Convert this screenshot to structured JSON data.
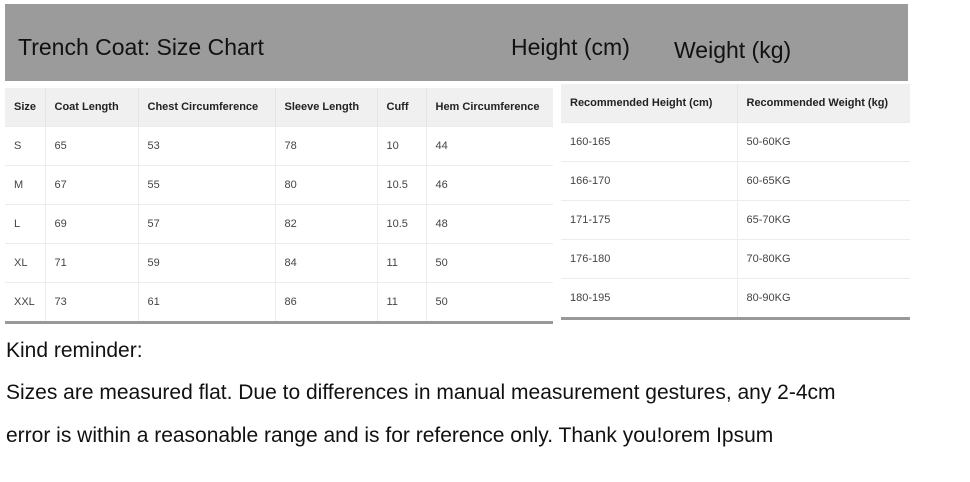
{
  "banner": {
    "title": "Trench Coat: Size Chart",
    "height_label": "Height (cm)",
    "weight_label": "Weight (kg)"
  },
  "size_table": {
    "headers": [
      "Size",
      "Coat Length",
      "Chest Circumference",
      "Sleeve Length",
      "Cuff",
      "Hem Circumference"
    ],
    "rows": [
      [
        "S",
        "65",
        "53",
        "78",
        "10",
        "44"
      ],
      [
        "M",
        "67",
        "55",
        "80",
        "10.5",
        "46"
      ],
      [
        "L",
        "69",
        "57",
        "82",
        "10.5",
        "48"
      ],
      [
        "XL",
        "71",
        "59",
        "84",
        "11",
        "50"
      ],
      [
        "XXL",
        "73",
        "61",
        "86",
        "11",
        "50"
      ]
    ]
  },
  "recommend_table": {
    "headers": [
      "Recommended Height (cm)",
      "Recommended Weight (kg)"
    ],
    "rows": [
      [
        "160-165",
        "50-60KG"
      ],
      [
        "166-170",
        "60-65KG"
      ],
      [
        "171-175",
        "65-70KG"
      ],
      [
        "176-180",
        "70-80KG"
      ],
      [
        "180-195",
        "80-90KG"
      ]
    ]
  },
  "note": {
    "heading": "Kind reminder:",
    "line1": "Sizes are measured flat. Due to differences in manual measurement gestures, any 2-4cm",
    "line2": "error is within a reasonable range and is for reference only. Thank you!orem Ipsum"
  }
}
